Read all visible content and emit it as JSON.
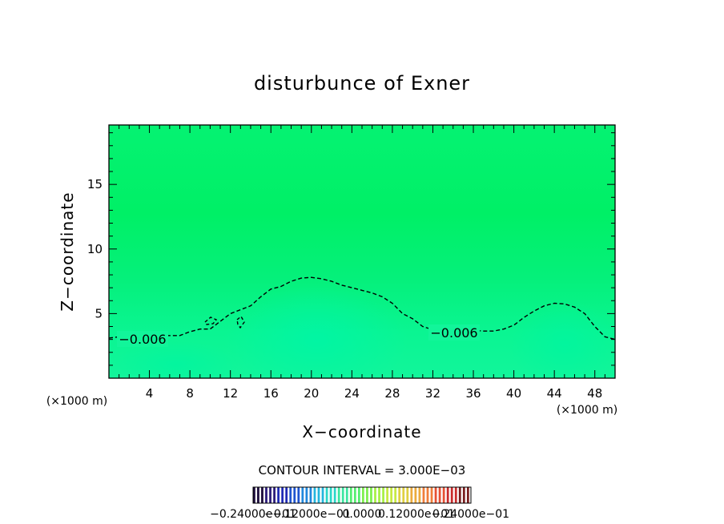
{
  "chart_data": {
    "type": "contour",
    "title": "disturbunce of Exner",
    "xlabel": "X−coordinate",
    "ylabel": "Z−coordinate",
    "x_unit_label": "(×1000 m)",
    "y_unit_label": "(×1000 m)",
    "xlim": [
      0,
      50
    ],
    "ylim": [
      0,
      19.6
    ],
    "x_ticks": [
      4,
      8,
      12,
      16,
      20,
      24,
      28,
      32,
      36,
      40,
      44,
      48
    ],
    "y_ticks": [
      5,
      10,
      15
    ],
    "contour_interval_text": "CONTOUR INTERVAL = 3.000E−03",
    "contour_labels": [
      "−0.006",
      "−0.006"
    ],
    "contour_line": {
      "level": -0.006,
      "x": [
        0,
        1,
        2,
        3,
        4,
        5,
        6,
        7,
        8,
        9,
        10,
        11,
        12,
        13,
        14,
        15,
        16,
        17,
        18,
        19,
        20,
        21,
        22,
        23,
        24,
        25,
        26,
        27,
        28,
        29,
        30,
        31,
        32,
        33,
        34,
        35,
        36,
        37,
        38,
        39,
        40,
        41,
        42,
        43,
        44,
        45,
        46,
        47,
        48,
        49,
        50
      ],
      "z": [
        3.1,
        3.2,
        3.25,
        3.25,
        3.25,
        3.3,
        3.3,
        3.3,
        3.6,
        3.8,
        3.8,
        4.4,
        5.0,
        5.3,
        5.6,
        6.3,
        6.9,
        7.1,
        7.5,
        7.75,
        7.8,
        7.7,
        7.5,
        7.2,
        7.0,
        6.8,
        6.6,
        6.3,
        5.8,
        5.0,
        4.6,
        4.0,
        3.75,
        3.75,
        3.75,
        3.75,
        3.7,
        3.65,
        3.65,
        3.8,
        4.1,
        4.7,
        5.2,
        5.6,
        5.8,
        5.75,
        5.5,
        5.0,
        4.0,
        3.2,
        3.0
      ]
    },
    "colorbar": {
      "tick_labels": [
        "−0.24000e−01",
        "−0.12000e−01",
        "0.0000",
        "0.12000e−01",
        "0.24000e−01"
      ],
      "colors": [
        "#1a0a3a",
        "#2a1a7a",
        "#1f2ab5",
        "#1f55d0",
        "#1f88dd",
        "#23b6dd",
        "#2ad7c8",
        "#3be6a0",
        "#55ee70",
        "#80f04f",
        "#a8f046",
        "#c7ea43",
        "#dfd040",
        "#ecab3d",
        "#f07e3a",
        "#e65133",
        "#c92c2c",
        "#7a1e1e"
      ]
    }
  }
}
